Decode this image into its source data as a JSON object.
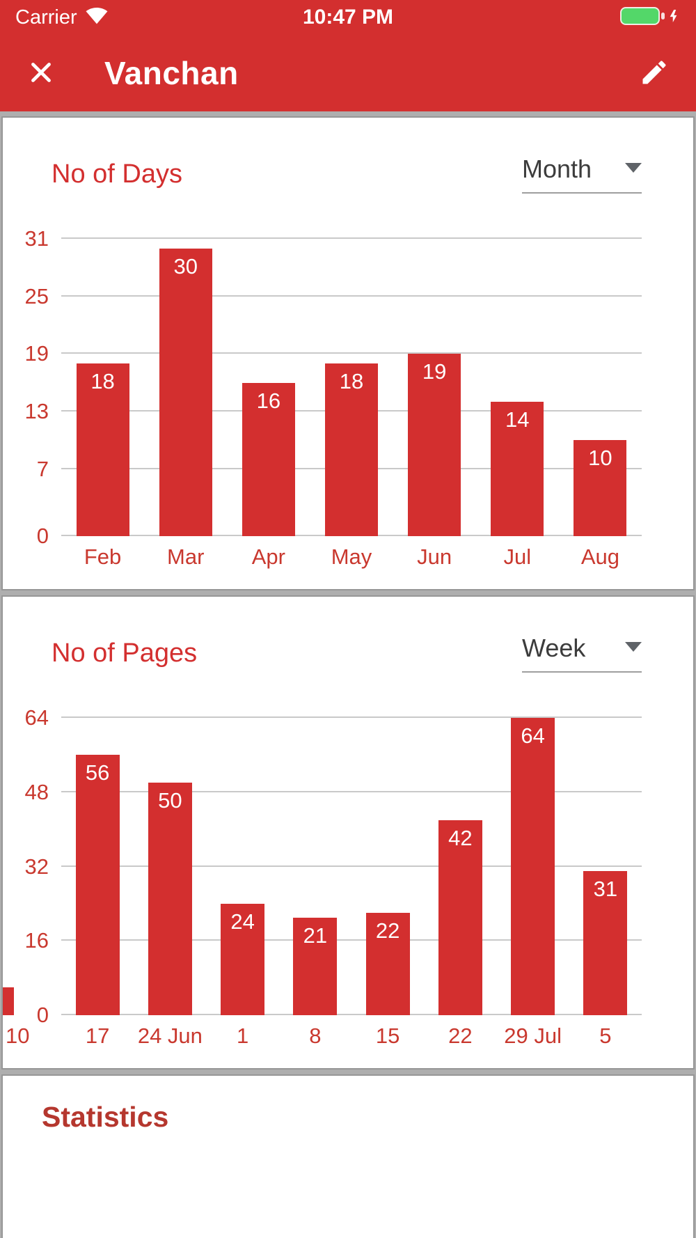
{
  "status_bar": {
    "carrier": "Carrier",
    "time": "10:47 PM"
  },
  "nav_bar": {
    "title": "Vanchan"
  },
  "cards": [
    {
      "title": "No of Days",
      "period": "Month"
    },
    {
      "title": "No of Pages",
      "period": "Week"
    }
  ],
  "chart_data": [
    {
      "type": "bar",
      "title": "No of Days",
      "period_filter": "Month",
      "categories": [
        "Feb",
        "Mar",
        "Apr",
        "May",
        "Jun",
        "Jul",
        "Aug"
      ],
      "values": [
        18,
        30,
        16,
        18,
        19,
        14,
        10
      ],
      "yticks": [
        0,
        7,
        13,
        19,
        25,
        31
      ],
      "ylim": [
        0,
        31
      ],
      "grid": true,
      "bar_color": "#d32f2f",
      "value_label_color": "#ffffff",
      "value_label_position": "inside-top"
    },
    {
      "type": "bar",
      "title": "No of Pages",
      "period_filter": "Week",
      "categories": [
        "17",
        "24 Jun",
        "1",
        "8",
        "15",
        "22",
        "29 Jul",
        "5"
      ],
      "values": [
        56,
        50,
        24,
        21,
        22,
        42,
        64,
        31
      ],
      "yticks": [
        0,
        16,
        32,
        48,
        64
      ],
      "ylim": [
        0,
        64
      ],
      "grid": true,
      "bar_color": "#d32f2f",
      "value_label_color": "#ffffff",
      "value_label_position": "inside-top",
      "partial_bar_left": {
        "label": "10",
        "approx_value": 6
      }
    }
  ],
  "statistics": {
    "heading": "Statistics"
  },
  "colors": {
    "primary": "#d32f2f",
    "bar": "#d32f2f",
    "axis_label": "#c9382e",
    "value_label": "#ffffff",
    "page_background": "#aeaeae",
    "card_background": "#ffffff",
    "battery_green": "#53d769"
  }
}
